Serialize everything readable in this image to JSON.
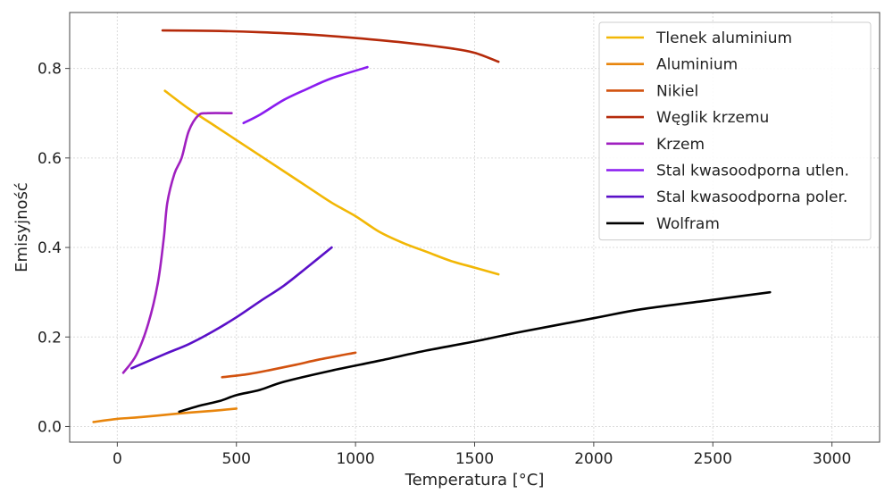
{
  "chart_data": {
    "type": "line",
    "title": "",
    "xlabel": "Temperatura [°C]",
    "ylabel": "Emisyjność",
    "xlim": [
      -200,
      3200
    ],
    "ylim": [
      -0.035,
      0.925
    ],
    "xticks": [
      0,
      500,
      1000,
      1500,
      2000,
      2500,
      3000
    ],
    "yticks": [
      0.0,
      0.2,
      0.4,
      0.6,
      0.8
    ],
    "xtick_labels": [
      "0",
      "500",
      "1000",
      "1500",
      "2000",
      "2500",
      "3000"
    ],
    "ytick_labels": [
      "0.0",
      "0.2",
      "0.4",
      "0.6",
      "0.8"
    ],
    "grid": true,
    "legend_position": "top-right",
    "series": [
      {
        "name": "Tlenek aluminium",
        "color": "#f2b705",
        "x": [
          200,
          300,
          400,
          500,
          600,
          700,
          800,
          900,
          1000,
          1100,
          1200,
          1300,
          1400,
          1500,
          1600
        ],
        "y": [
          0.75,
          0.71,
          0.675,
          0.64,
          0.605,
          0.57,
          0.535,
          0.5,
          0.47,
          0.435,
          0.41,
          0.39,
          0.37,
          0.355,
          0.34
        ]
      },
      {
        "name": "Aluminium",
        "color": "#e8850c",
        "x": [
          -100,
          0,
          100,
          200,
          300,
          400,
          500
        ],
        "y": [
          0.01,
          0.017,
          0.021,
          0.026,
          0.031,
          0.035,
          0.04
        ]
      },
      {
        "name": "Nikiel",
        "color": "#d2520f",
        "x": [
          440,
          550,
          650,
          750,
          850,
          1000
        ],
        "y": [
          0.11,
          0.117,
          0.127,
          0.138,
          0.15,
          0.165
        ]
      },
      {
        "name": "Węglik krzemu",
        "color": "#b52a0a",
        "x": [
          190,
          400,
          600,
          800,
          1000,
          1200,
          1400,
          1500,
          1600
        ],
        "y": [
          0.885,
          0.884,
          0.881,
          0.876,
          0.868,
          0.858,
          0.845,
          0.835,
          0.815
        ]
      },
      {
        "name": "Krzem",
        "color": "#a020c0",
        "x": [
          25,
          80,
          130,
          170,
          195,
          210,
          240,
          270,
          300,
          340,
          380,
          480
        ],
        "y": [
          0.12,
          0.16,
          0.23,
          0.32,
          0.42,
          0.5,
          0.565,
          0.6,
          0.66,
          0.695,
          0.7,
          0.7
        ]
      },
      {
        "name": "Stal kwasoodporna utlen.",
        "color": "#8a1cf0",
        "x": [
          530,
          600,
          700,
          800,
          900,
          1050
        ],
        "y": [
          0.678,
          0.697,
          0.73,
          0.755,
          0.778,
          0.803
        ]
      },
      {
        "name": "Stal kwasoodporna poler.",
        "color": "#5a10c8",
        "x": [
          60,
          200,
          300,
          400,
          500,
          600,
          700,
          800,
          900
        ],
        "y": [
          0.13,
          0.162,
          0.184,
          0.212,
          0.244,
          0.28,
          0.315,
          0.357,
          0.4
        ]
      },
      {
        "name": "Wolfram",
        "color": "#000000",
        "x": [
          260,
          350,
          430,
          500,
          600,
          700,
          900,
          1100,
          1300,
          1500,
          1700,
          2000,
          2200,
          2500,
          2740
        ],
        "y": [
          0.033,
          0.047,
          0.057,
          0.07,
          0.082,
          0.1,
          0.125,
          0.147,
          0.17,
          0.19,
          0.212,
          0.242,
          0.262,
          0.283,
          0.3
        ]
      }
    ]
  }
}
